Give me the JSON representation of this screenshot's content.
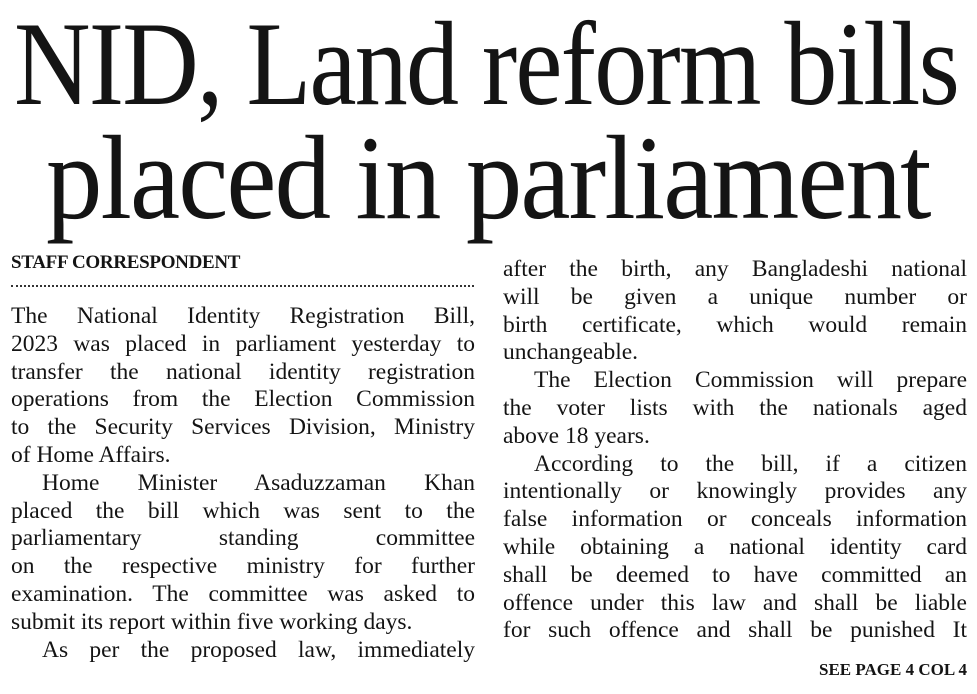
{
  "headline": {
    "line1": "NID, Land reform bills",
    "line2": "placed in parliament"
  },
  "byline": "STAFF CORRESPONDENT",
  "left_column": [
    {
      "text": "The National Identity Registration Bill,"
    },
    {
      "text": "2023 was placed in parliament yesterday to"
    },
    {
      "text": "transfer the national identity registration"
    },
    {
      "text": "operations from the Election Commission"
    },
    {
      "text": "to the Security Services Division, Ministry"
    },
    {
      "text": "of Home Affairs.",
      "last": true
    },
    {
      "text": "Home Minister Asaduzzaman Khan",
      "indent": true
    },
    {
      "text": "placed the bill which was sent to the"
    },
    {
      "text": "parliamentary standing committee"
    },
    {
      "text": "on the respective ministry for further"
    },
    {
      "text": "examination. The committee was asked to"
    },
    {
      "text": "submit its report within five working days.",
      "last": true
    },
    {
      "text": "As per the proposed law, immediately",
      "indent": true
    }
  ],
  "right_column": [
    {
      "text": "after the birth, any Bangladeshi national"
    },
    {
      "text": "will be given a unique number or"
    },
    {
      "text": "birth certificate, which would remain"
    },
    {
      "text": "unchangeable.",
      "last": true
    },
    {
      "text": "The Election Commission will prepare",
      "indent": true
    },
    {
      "text": "the voter lists with the nationals aged"
    },
    {
      "text": "above 18 years.",
      "last": true
    },
    {
      "text": "According to the bill, if a citizen",
      "indent": true
    },
    {
      "text": "intentionally or knowingly provides any"
    },
    {
      "text": "false information or conceals information"
    },
    {
      "text": "while obtaining a national identity card"
    },
    {
      "text": "shall be deemed to have committed an"
    },
    {
      "text": "offence under this law and shall be liable"
    },
    {
      "text": "for such offence and shall be punished It"
    }
  ],
  "continuation": "SEE PAGE 4 COL 4"
}
